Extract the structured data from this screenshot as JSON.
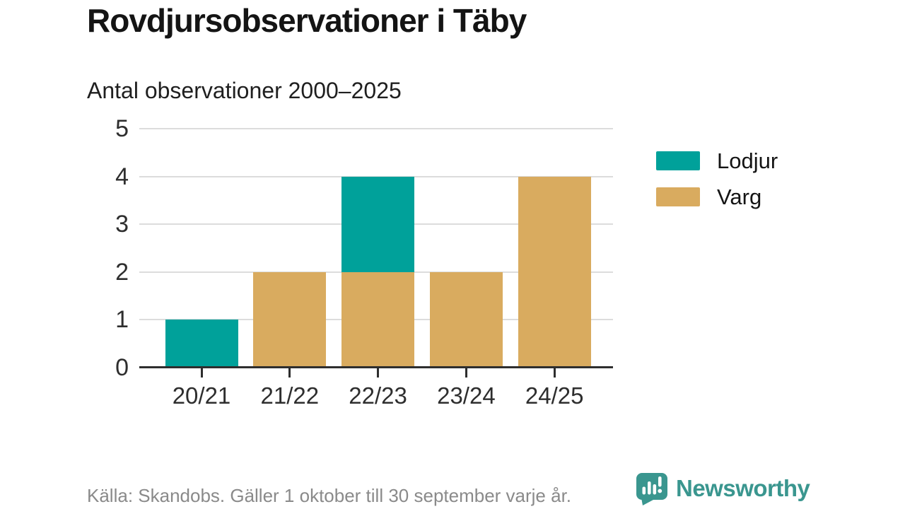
{
  "header": {
    "title": "Rovdjursobservationer i Täby",
    "subtitle": "Antal observationer 2000–2025"
  },
  "chart_data": {
    "type": "bar",
    "stacked": true,
    "title": "Rovdjursobservationer i Täby",
    "subtitle": "Antal observationer 2000–2025",
    "categories": [
      "20/21",
      "21/22",
      "22/23",
      "23/24",
      "24/25"
    ],
    "series": [
      {
        "name": "Varg",
        "color": "#d9ab5f",
        "values": [
          0,
          2,
          2,
          2,
          4
        ]
      },
      {
        "name": "Lodjur",
        "color": "#00a19a",
        "values": [
          1,
          0,
          2,
          0,
          0
        ]
      }
    ],
    "totals": [
      1,
      2,
      4,
      2,
      4
    ],
    "legend": [
      {
        "label": "Lodjur",
        "color": "#00a19a"
      },
      {
        "label": "Varg",
        "color": "#d9ab5f"
      }
    ],
    "legend_position": "right",
    "xlabel": "",
    "ylabel": "",
    "ylim": [
      0,
      5
    ],
    "yticks": [
      0,
      1,
      2,
      3,
      4,
      5
    ],
    "grid": true,
    "gridline_color": "#dcdcdc",
    "axis_color": "#2e2e2e"
  },
  "footer": {
    "source": "Källa: Skandobs. Gäller 1 oktober till 30 september varje år.",
    "brand": "Newsworthy",
    "brand_color": "#3a968f"
  }
}
